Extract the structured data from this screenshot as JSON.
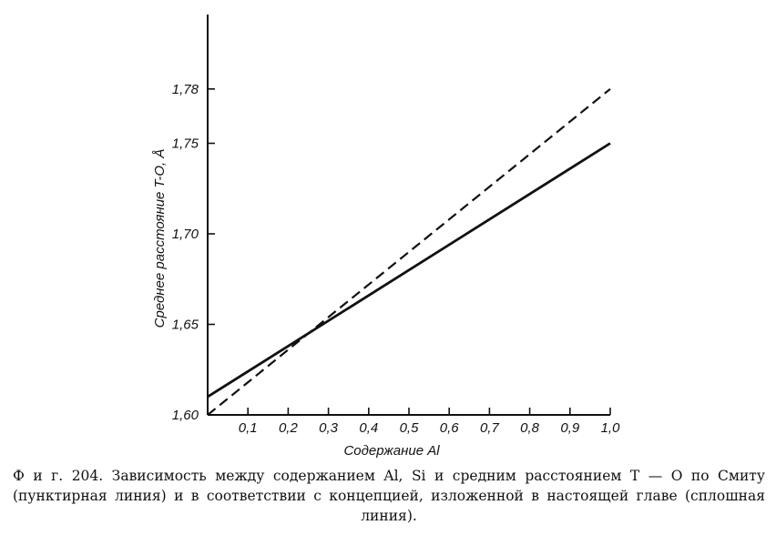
{
  "chart_data": {
    "type": "line",
    "xlabel": "Содержание Al",
    "ylabel": "Среднее расстояние T-O, Å",
    "xlim": [
      0,
      1.0
    ],
    "ylim": [
      1.6,
      1.8
    ],
    "x_ticks": [
      {
        "value": 0.1,
        "label": "0,1"
      },
      {
        "value": 0.2,
        "label": "0,2"
      },
      {
        "value": 0.3,
        "label": "0,3"
      },
      {
        "value": 0.4,
        "label": "0,4"
      },
      {
        "value": 0.5,
        "label": "0,5"
      },
      {
        "value": 0.6,
        "label": "0,6"
      },
      {
        "value": 0.7,
        "label": "0,7"
      },
      {
        "value": 0.8,
        "label": "0,8"
      },
      {
        "value": 0.9,
        "label": "0,9"
      },
      {
        "value": 1.0,
        "label": "1,0"
      }
    ],
    "y_ticks": [
      {
        "value": 1.6,
        "label": "1,60"
      },
      {
        "value": 1.65,
        "label": "1,65"
      },
      {
        "value": 1.7,
        "label": "1,70"
      },
      {
        "value": 1.75,
        "label": "1,75"
      },
      {
        "value": 1.78,
        "label": "1,78"
      }
    ],
    "grid": false,
    "series": [
      {
        "style": "dashed",
        "color": "#111111",
        "x": [
          0,
          1.0
        ],
        "y": [
          1.6,
          1.78
        ]
      },
      {
        "style": "solid",
        "color": "#111111",
        "x": [
          0,
          1.0
        ],
        "y": [
          1.61,
          1.75
        ]
      }
    ]
  },
  "caption": {
    "text": "Ф и г. 204. Зависимость между содержанием Al, Si и средним расстоянием T — O по Смиту (пунктирная линия) и в соответствии с концепцией, изложенной в настоящей главе (сплошная линия)."
  }
}
